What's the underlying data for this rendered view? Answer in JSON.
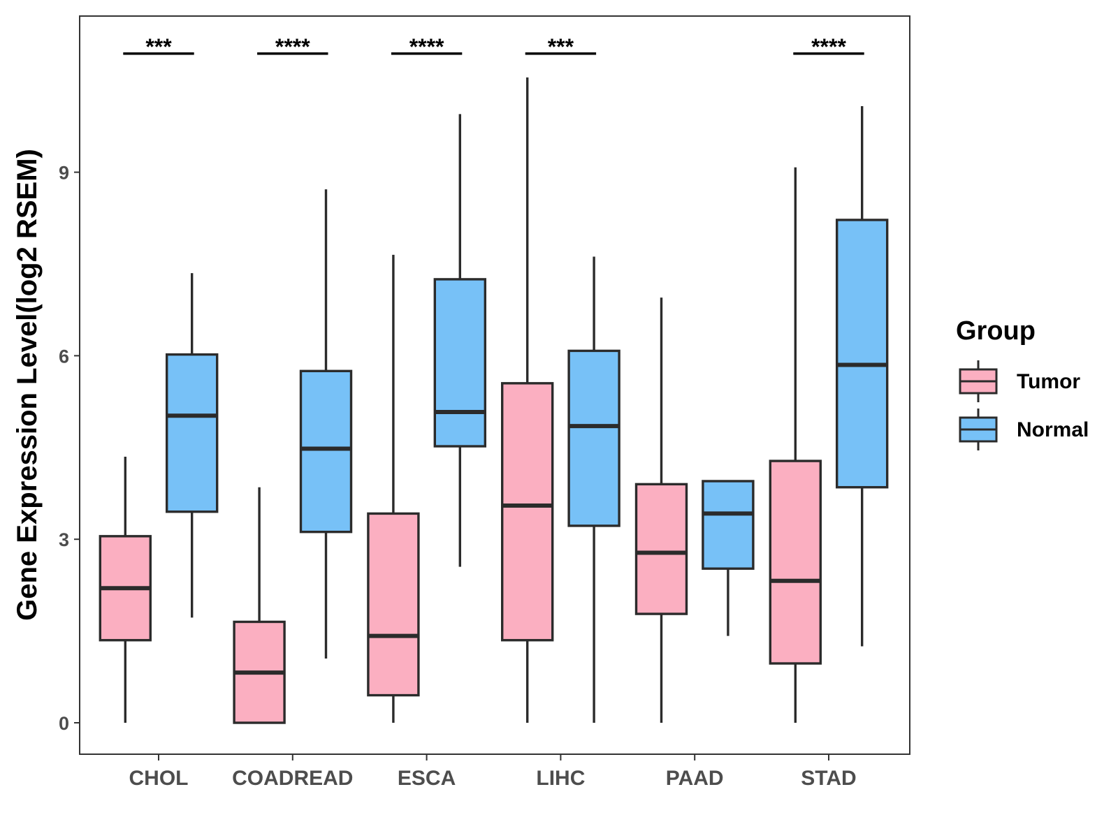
{
  "chart_data": {
    "type": "boxplot",
    "title": "",
    "xlabel": "",
    "ylabel": "Gene Expression Level(log2 RSEM)",
    "ylim": [
      -0.55,
      11.5
    ],
    "yticks": [
      0,
      3,
      6,
      9
    ],
    "grid": false,
    "legend": {
      "title": "Group",
      "position": "right",
      "entries": [
        {
          "name": "Tumor",
          "color": "#fbafc1"
        },
        {
          "name": "Normal",
          "color": "#77c1f7"
        }
      ]
    },
    "categories": [
      "CHOL",
      "COADREAD",
      "ESCA",
      "LIHC",
      "PAAD",
      "STAD"
    ],
    "series": [
      {
        "name": "Tumor",
        "color": "#fbafc1",
        "boxes": [
          {
            "whisker_low": 0.0,
            "q1": 1.35,
            "median": 2.2,
            "q3": 3.05,
            "whisker_high": 4.35
          },
          {
            "whisker_low": 0.0,
            "q1": 0.0,
            "median": 0.82,
            "q3": 1.65,
            "whisker_high": 3.85
          },
          {
            "whisker_low": 0.0,
            "q1": 0.45,
            "median": 1.42,
            "q3": 3.42,
            "whisker_high": 7.65
          },
          {
            "whisker_low": 0.0,
            "q1": 1.35,
            "median": 3.55,
            "q3": 5.55,
            "whisker_high": 10.55
          },
          {
            "whisker_low": 0.0,
            "q1": 1.78,
            "median": 2.78,
            "q3": 3.9,
            "whisker_high": 6.95
          },
          {
            "whisker_low": 0.0,
            "q1": 0.97,
            "median": 2.32,
            "q3": 4.28,
            "whisker_high": 9.08
          }
        ]
      },
      {
        "name": "Normal",
        "color": "#77c1f7",
        "boxes": [
          {
            "whisker_low": 1.72,
            "q1": 3.45,
            "median": 5.02,
            "q3": 6.02,
            "whisker_high": 7.35
          },
          {
            "whisker_low": 1.05,
            "q1": 3.12,
            "median": 4.48,
            "q3": 5.75,
            "whisker_high": 8.72
          },
          {
            "whisker_low": 2.55,
            "q1": 4.52,
            "median": 5.08,
            "q3": 7.25,
            "whisker_high": 9.95
          },
          {
            "whisker_low": 0.0,
            "q1": 3.22,
            "median": 4.85,
            "q3": 6.08,
            "whisker_high": 7.62
          },
          {
            "whisker_low": 1.42,
            "q1": 2.52,
            "median": 3.42,
            "q3": 3.95,
            "whisker_high": 3.95
          },
          {
            "whisker_low": 1.25,
            "q1": 3.85,
            "median": 5.85,
            "q3": 8.22,
            "whisker_high": 10.08
          }
        ]
      }
    ],
    "significance": [
      {
        "category": "CHOL",
        "label": "***"
      },
      {
        "category": "COADREAD",
        "label": "****"
      },
      {
        "category": "ESCA",
        "label": "****"
      },
      {
        "category": "LIHC",
        "label": "***"
      },
      {
        "category": "STAD",
        "label": "****"
      }
    ],
    "significance_y": 10.95
  }
}
